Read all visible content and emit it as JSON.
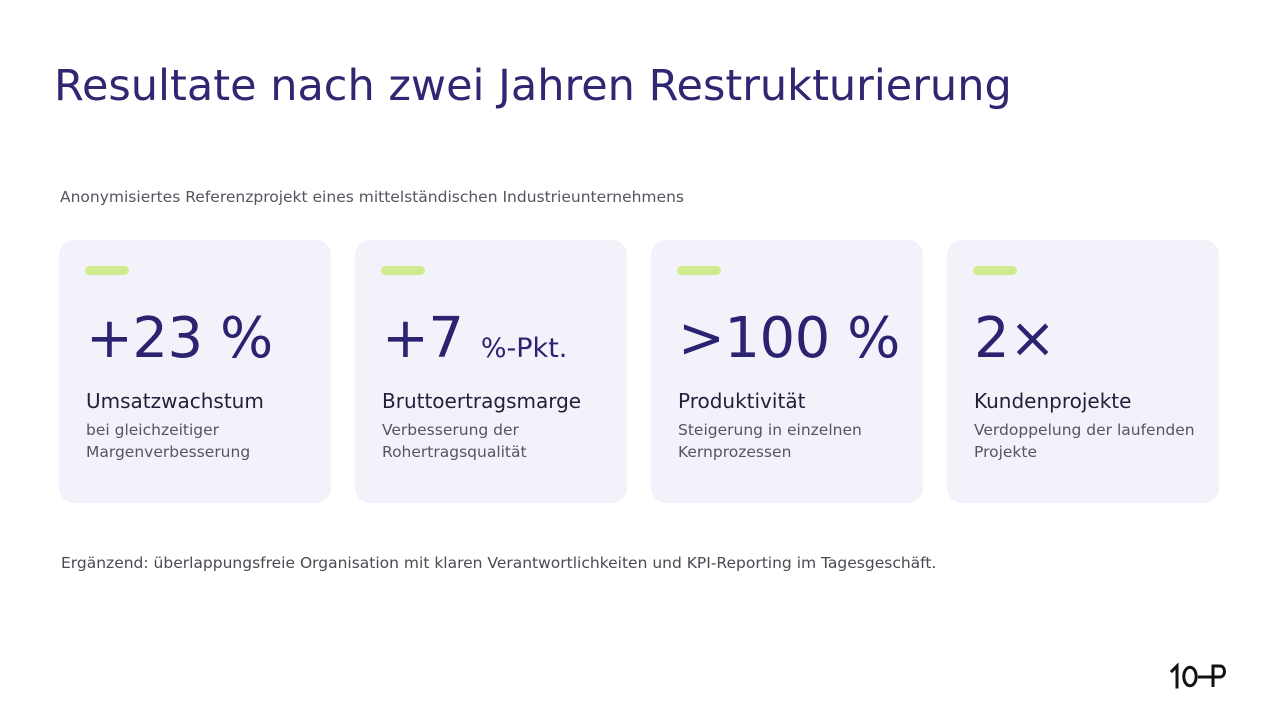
{
  "slide": {
    "title": "Resultate nach zwei Jahren Restrukturierung",
    "subtitle": "Anonymisiertes Referenzprojekt eines mittelständischen Industrieunternehmens",
    "footnote": "Ergänzend: überlappungsfreie Organisation mit klaren Verantwortlichkeiten und KPI-Reporting im Tagesgeschäft.",
    "logo_text": "10P"
  },
  "cards": [
    {
      "value": "+23 %",
      "unit": "",
      "label": "Umsatzwachstum",
      "description": "bei gleichzeitiger Margenverbesserung"
    },
    {
      "value": "+7",
      "unit": "%-Pkt.",
      "label": "Bruttoertragsmarge",
      "description": "Verbesserung der Rohertragsqualität"
    },
    {
      "value": ">100 %",
      "unit": "",
      "label": "Produktivität",
      "description": "Steigerung in einzelnen Kernprozessen"
    },
    {
      "value": "2×",
      "unit": "",
      "label": "Kundenprojekte",
      "description": "Verdoppelung der laufenden Projekte"
    }
  ],
  "colors": {
    "title": "#2f2772",
    "metric": "#2b2370",
    "card_background": "#f3f2fb",
    "accent_bar": "#cfeb8f",
    "body_text": "#55555f"
  }
}
